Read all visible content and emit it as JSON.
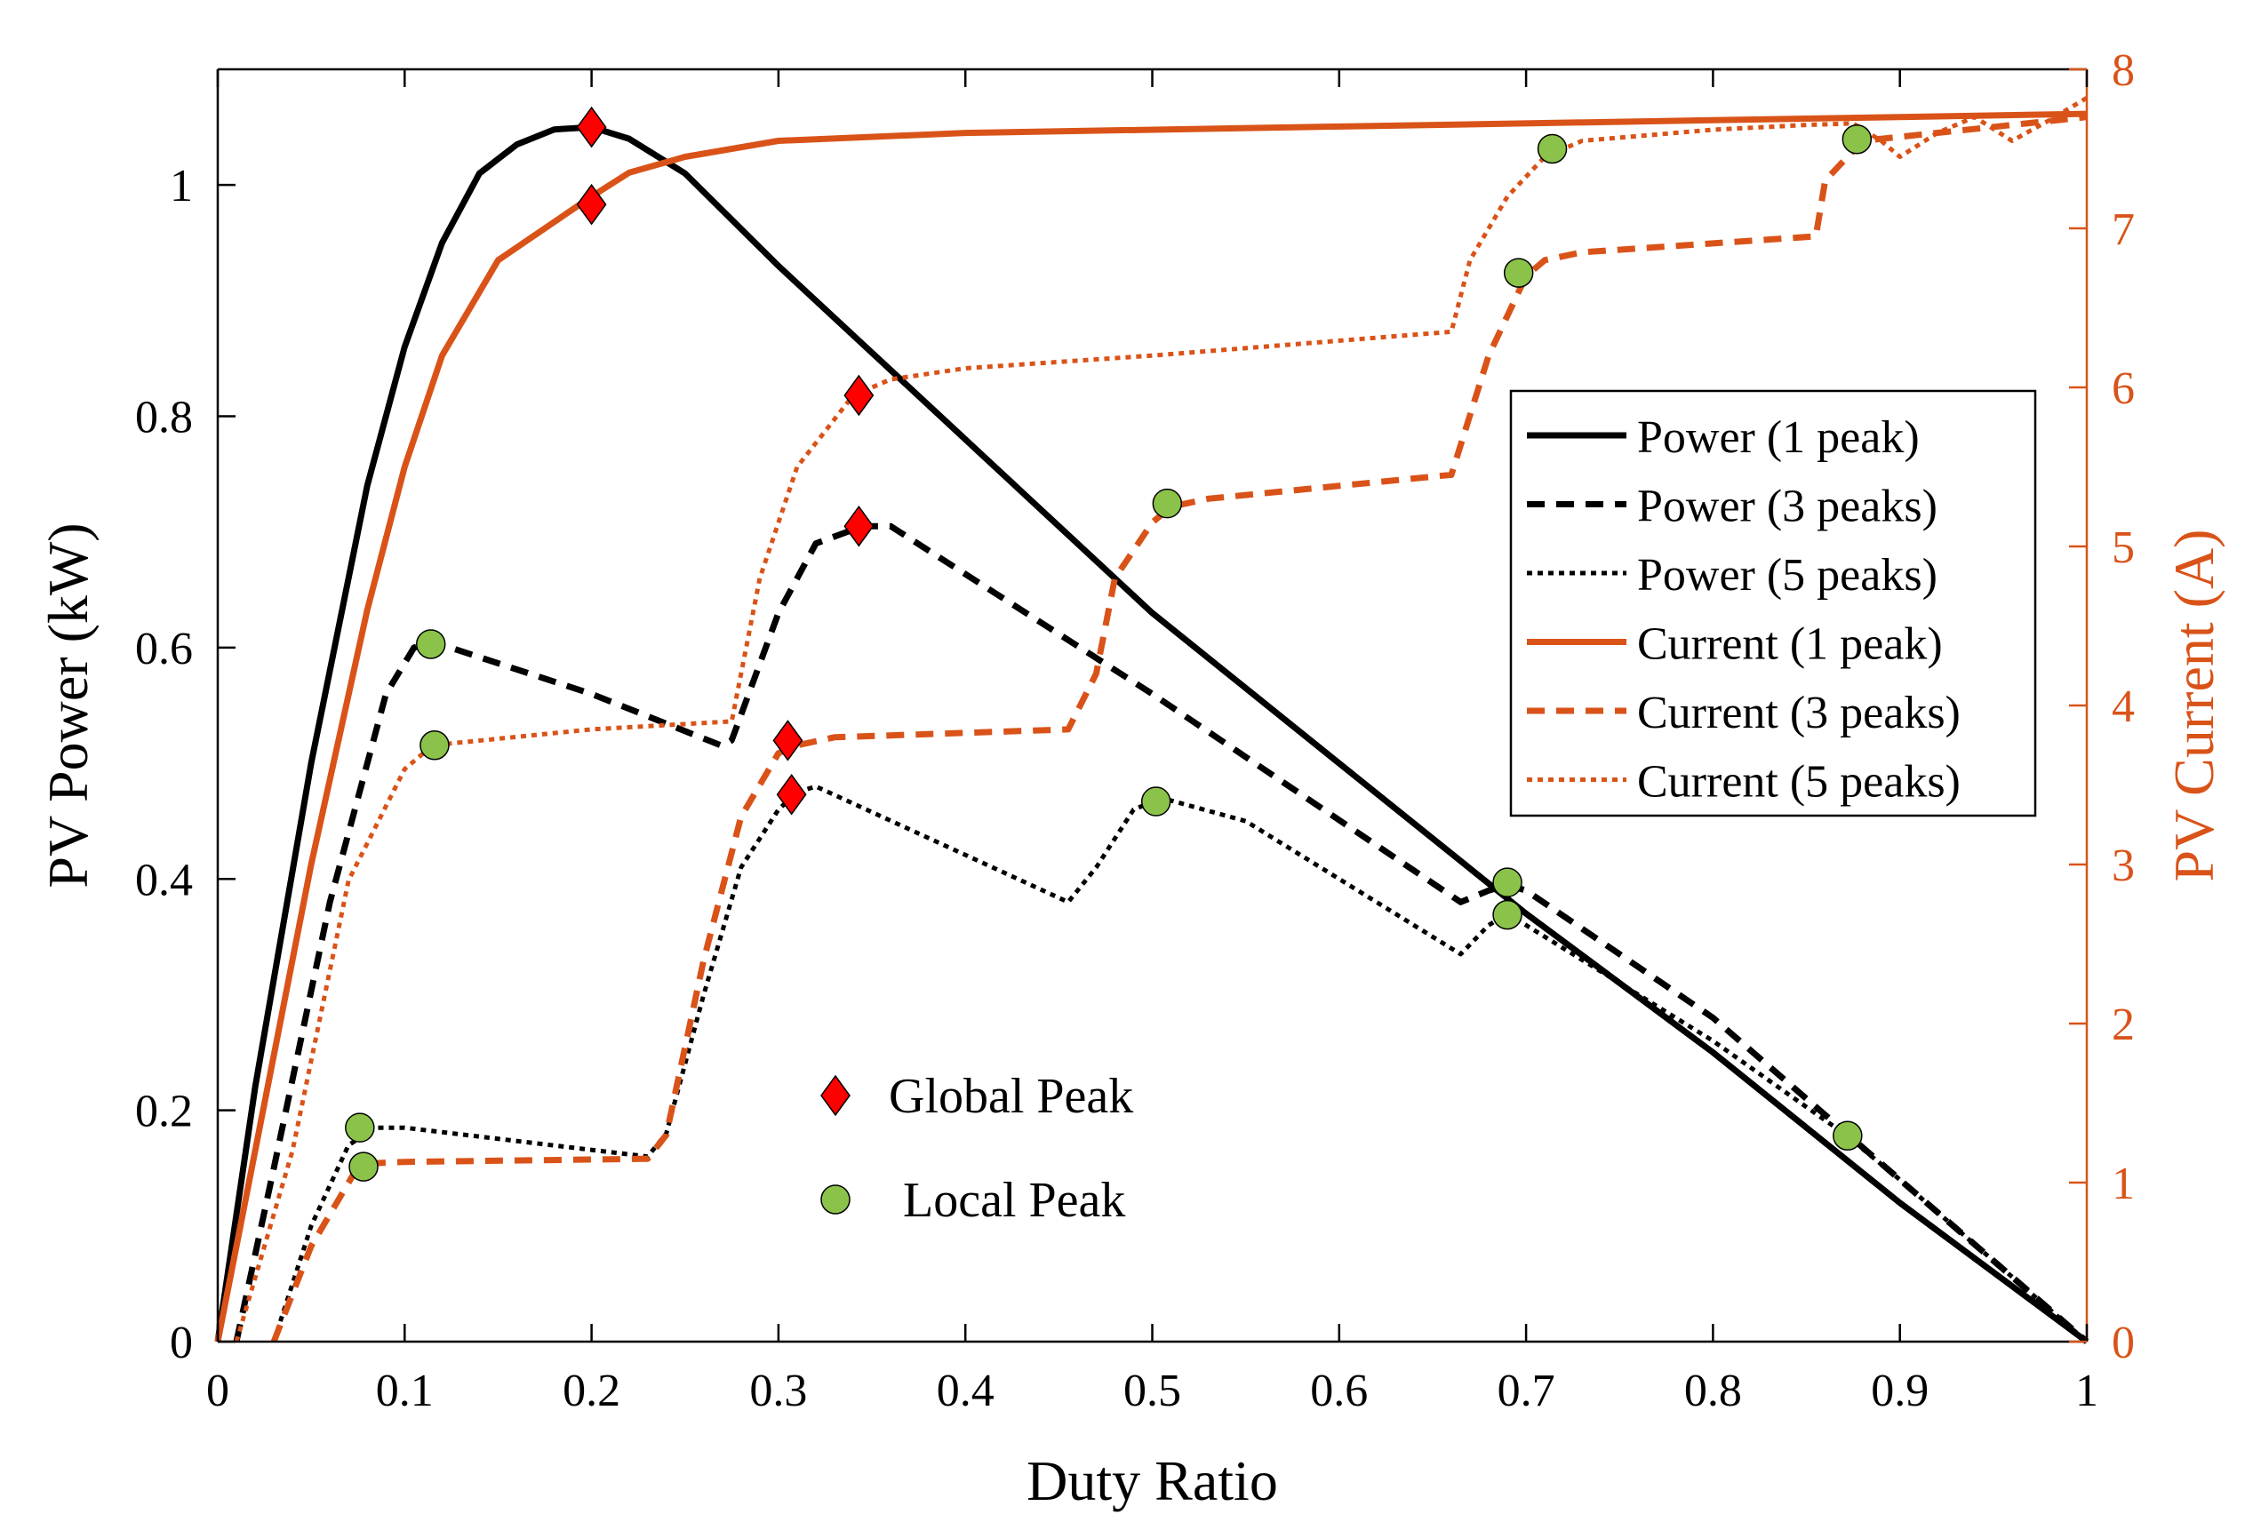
{
  "chart_data": {
    "type": "line",
    "title": "",
    "xlabel": "Duty Ratio",
    "ylabel_left": "PV Power (kW)",
    "ylabel_right": "PV Current (A)",
    "xlim": [
      0,
      1
    ],
    "ylim_left": [
      0,
      1.1
    ],
    "ylim_right": [
      0,
      8
    ],
    "x_ticks": [
      "0",
      "0.1",
      "0.2",
      "0.3",
      "0.4",
      "0.5",
      "0.6",
      "0.7",
      "0.8",
      "0.9",
      "1"
    ],
    "y_left_ticks": [
      "0",
      "0.2",
      "0.4",
      "0.6",
      "0.8",
      "1"
    ],
    "y_right_ticks": [
      "0",
      "1",
      "2",
      "3",
      "4",
      "5",
      "6",
      "7",
      "8"
    ],
    "colors": {
      "power": "#000000",
      "current": "#d95319",
      "global_peak": "#ff0000",
      "local_peak": "#8bc34a"
    },
    "legend": {
      "position": "upper-right",
      "entries": [
        "Power (1 peak)",
        "Power (3 peaks)",
        "Power (5 peaks)",
        "Current (1 peak)",
        "Current (3 peaks)",
        "Current (5 peaks)"
      ]
    },
    "marker_legend": {
      "global": "Global Peak",
      "local": "Local Peak"
    },
    "series": [
      {
        "name": "Power (1 peak)",
        "axis": "left",
        "color": "#000000",
        "dash": "solid",
        "x": [
          0,
          0.02,
          0.05,
          0.08,
          0.1,
          0.12,
          0.14,
          0.16,
          0.18,
          0.2,
          0.22,
          0.25,
          0.3,
          0.4,
          0.5,
          0.6,
          0.7,
          0.8,
          0.9,
          1.0
        ],
        "y": [
          0,
          0.22,
          0.5,
          0.74,
          0.86,
          0.95,
          1.01,
          1.035,
          1.048,
          1.05,
          1.04,
          1.01,
          0.93,
          0.78,
          0.63,
          0.5,
          0.37,
          0.25,
          0.12,
          0
        ]
      },
      {
        "name": "Power (3 peaks)",
        "axis": "left",
        "color": "#000000",
        "dash": "dashed",
        "x": [
          0.01,
          0.03,
          0.06,
          0.09,
          0.105,
          0.115,
          0.2,
          0.27,
          0.275,
          0.3,
          0.32,
          0.345,
          0.36,
          0.5,
          0.665,
          0.68,
          0.69,
          0.7,
          0.8,
          0.9,
          1.0
        ],
        "y": [
          0,
          0.15,
          0.38,
          0.56,
          0.6,
          0.605,
          0.56,
          0.515,
          0.52,
          0.63,
          0.69,
          0.705,
          0.705,
          0.56,
          0.38,
          0.39,
          0.395,
          0.39,
          0.28,
          0.14,
          0
        ]
      },
      {
        "name": "Power (5 peaks)",
        "axis": "left",
        "color": "#000000",
        "dash": "dotted",
        "x": [
          0.03,
          0.05,
          0.07,
          0.085,
          0.1,
          0.23,
          0.24,
          0.26,
          0.28,
          0.3,
          0.31,
          0.32,
          0.455,
          0.47,
          0.49,
          0.505,
          0.55,
          0.665,
          0.68,
          0.69,
          0.7,
          0.8,
          0.87,
          0.9,
          1.0
        ],
        "y": [
          0,
          0.1,
          0.17,
          0.185,
          0.185,
          0.16,
          0.18,
          0.3,
          0.41,
          0.46,
          0.475,
          0.48,
          0.38,
          0.41,
          0.46,
          0.47,
          0.45,
          0.335,
          0.36,
          0.37,
          0.36,
          0.26,
          0.18,
          0.14,
          0
        ]
      },
      {
        "name": "Current (1 peak)",
        "axis": "right",
        "color": "#d95319",
        "dash": "solid",
        "x": [
          0,
          0.02,
          0.05,
          0.08,
          0.1,
          0.12,
          0.15,
          0.2,
          0.22,
          0.25,
          0.3,
          0.4,
          0.6,
          0.8,
          1.0
        ],
        "y": [
          0,
          1.2,
          3.0,
          4.6,
          5.5,
          6.2,
          6.8,
          7.2,
          7.35,
          7.45,
          7.55,
          7.6,
          7.64,
          7.68,
          7.72
        ]
      },
      {
        "name": "Current (3 peaks)",
        "axis": "right",
        "color": "#d95319",
        "dash": "dashed",
        "x": [
          0.03,
          0.05,
          0.07,
          0.075,
          0.08,
          0.1,
          0.23,
          0.24,
          0.26,
          0.28,
          0.3,
          0.31,
          0.33,
          0.455,
          0.47,
          0.48,
          0.5,
          0.51,
          0.53,
          0.66,
          0.68,
          0.7,
          0.71,
          0.73,
          0.855,
          0.86,
          0.88,
          1.0
        ],
        "y": [
          0,
          0.6,
          1.0,
          1.1,
          1.12,
          1.13,
          1.15,
          1.3,
          2.4,
          3.3,
          3.7,
          3.75,
          3.8,
          3.85,
          4.2,
          4.8,
          5.15,
          5.25,
          5.3,
          5.45,
          6.2,
          6.7,
          6.8,
          6.85,
          6.95,
          7.3,
          7.55,
          7.7
        ]
      },
      {
        "name": "Current (5 peaks)",
        "axis": "right",
        "color": "#d95319",
        "dash": "dotted",
        "x": [
          0.01,
          0.04,
          0.07,
          0.1,
          0.115,
          0.2,
          0.275,
          0.29,
          0.31,
          0.34,
          0.36,
          0.4,
          0.5,
          0.66,
          0.67,
          0.69,
          0.71,
          0.73,
          0.8,
          0.85,
          0.875,
          0.89,
          0.9,
          0.92,
          0.94,
          0.96,
          0.98,
          1.0
        ],
        "y": [
          0,
          1.2,
          2.9,
          3.6,
          3.75,
          3.85,
          3.9,
          4.8,
          5.5,
          5.95,
          6.05,
          6.12,
          6.2,
          6.35,
          6.8,
          7.2,
          7.45,
          7.55,
          7.62,
          7.65,
          7.66,
          7.55,
          7.45,
          7.6,
          7.7,
          7.55,
          7.68,
          7.82
        ]
      }
    ],
    "global_peaks": [
      {
        "axis": "left",
        "x": 0.2,
        "y": 1.05
      },
      {
        "axis": "right",
        "x": 0.2,
        "y": 7.15
      },
      {
        "axis": "right",
        "x": 0.343,
        "y": 5.95
      },
      {
        "axis": "left",
        "x": 0.343,
        "y": 0.705
      },
      {
        "axis": "right",
        "x": 0.305,
        "y": 3.78
      },
      {
        "axis": "left",
        "x": 0.307,
        "y": 0.473
      }
    ],
    "local_peaks": [
      {
        "axis": "left",
        "x": 0.114,
        "y": 0.603
      },
      {
        "axis": "right",
        "x": 0.116,
        "y": 3.75
      },
      {
        "axis": "left",
        "x": 0.076,
        "y": 0.185
      },
      {
        "axis": "right",
        "x": 0.078,
        "y": 1.1
      },
      {
        "axis": "right",
        "x": 0.508,
        "y": 5.27
      },
      {
        "axis": "left",
        "x": 0.502,
        "y": 0.467
      },
      {
        "axis": "right",
        "x": 0.714,
        "y": 7.5
      },
      {
        "axis": "right",
        "x": 0.696,
        "y": 6.72
      },
      {
        "axis": "left",
        "x": 0.69,
        "y": 0.397
      },
      {
        "axis": "left",
        "x": 0.69,
        "y": 0.369
      },
      {
        "axis": "right",
        "x": 0.877,
        "y": 7.56
      },
      {
        "axis": "left",
        "x": 0.872,
        "y": 0.178
      }
    ]
  }
}
